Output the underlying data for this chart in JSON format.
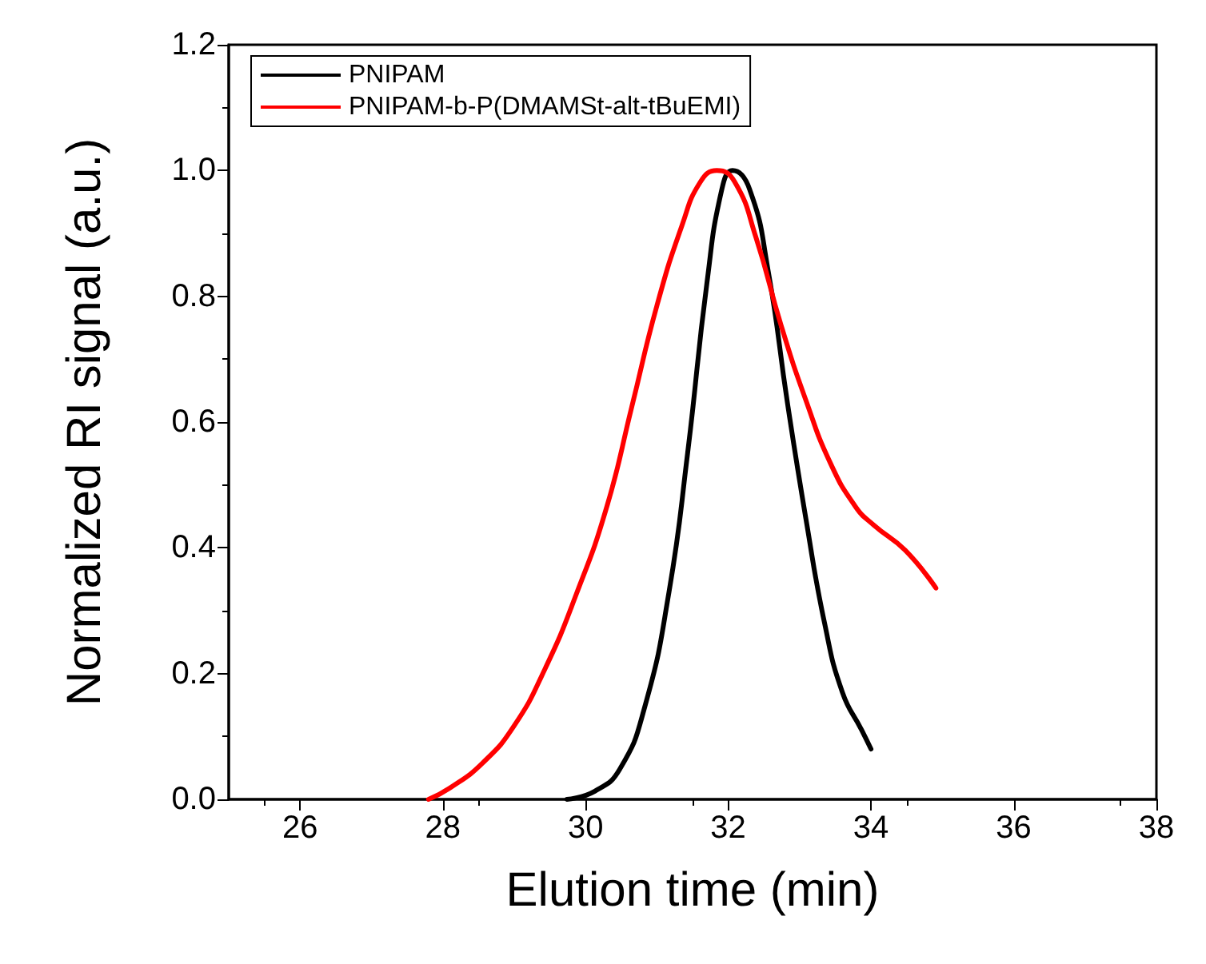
{
  "chart_data": {
    "type": "line",
    "xlabel": "Elution time (min)",
    "ylabel": "Normalized RI signal (a.u.)",
    "xlim": [
      25,
      38
    ],
    "xticks": [
      26,
      28,
      30,
      32,
      34,
      36,
      38
    ],
    "ylim": [
      0,
      1.2
    ],
    "yticks": [
      {
        "value": 0,
        "label": "0.0"
      },
      0.2,
      0.4,
      0.6,
      0.8,
      {
        "value": 1,
        "label": "1.0"
      },
      1.2
    ],
    "grid": false,
    "legend": "top left",
    "marker": "none",
    "line_style": "solid",
    "series": [
      {
        "name": "PNIPAM",
        "color": "#000000",
        "x": [
          29.74,
          30.13,
          30.48,
          30.83,
          31.17,
          31.43,
          31.7,
          31.91,
          32.06,
          32.3,
          32.56,
          32.83,
          33.09,
          33.35,
          33.6,
          33.87,
          34.0
        ],
        "values": [
          0,
          0.013,
          0.048,
          0.147,
          0.33,
          0.55,
          0.82,
          0.97,
          1.0,
          0.97,
          0.84,
          0.63,
          0.445,
          0.28,
          0.17,
          0.11,
          0.08
        ]
      },
      {
        "name": "PNIPAM-b-P(DMAMSt-alt-tBuEMI)",
        "color": "#ff0000",
        "x": [
          27.8,
          28.1,
          28.56,
          29.0,
          29.43,
          29.87,
          30.3,
          30.65,
          31.0,
          31.35,
          31.61,
          31.84,
          32.09,
          32.39,
          32.74,
          33.09,
          33.43,
          33.78,
          34.04,
          34.48,
          34.91
        ],
        "values": [
          0,
          0.018,
          0.058,
          0.117,
          0.207,
          0.326,
          0.466,
          0.625,
          0.785,
          0.912,
          0.982,
          1.0,
          0.982,
          0.893,
          0.754,
          0.634,
          0.535,
          0.466,
          0.436,
          0.396,
          0.336
        ]
      }
    ]
  }
}
